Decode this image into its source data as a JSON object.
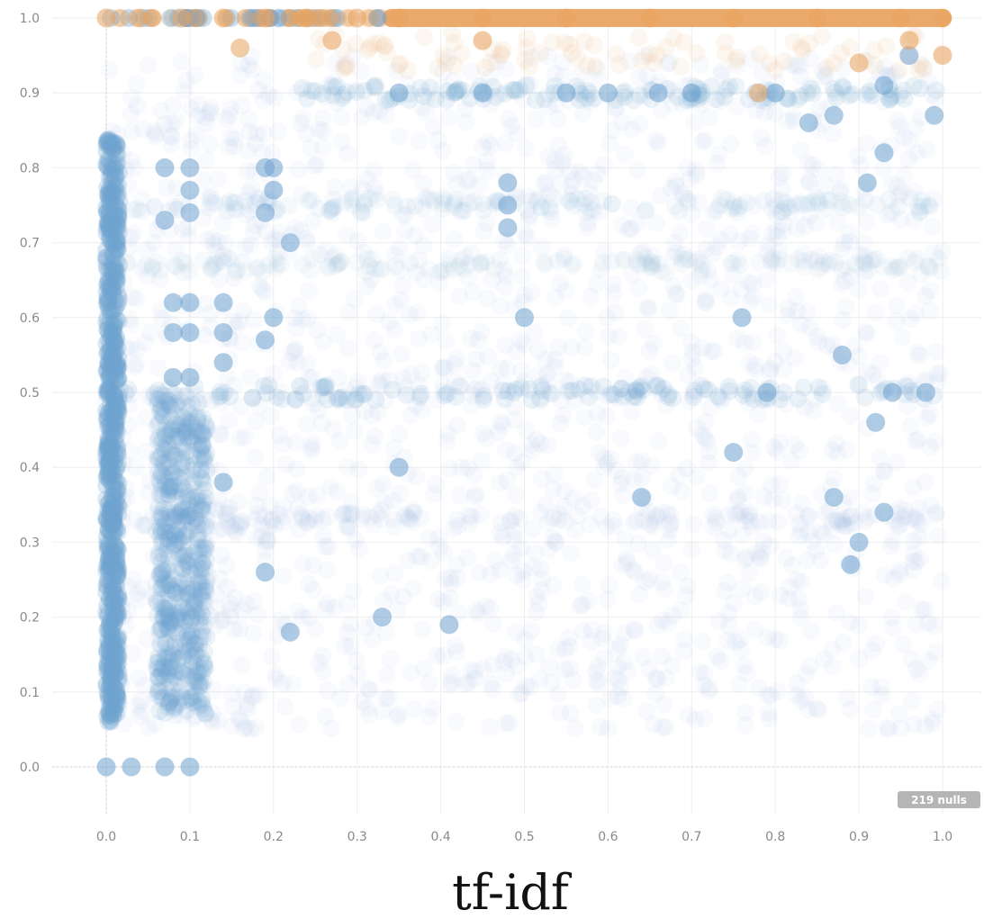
{
  "chart_data": {
    "type": "scatter",
    "title": "",
    "xlabel": "tf-idf",
    "ylabel": "",
    "xlim": [
      0,
      1
    ],
    "ylim": [
      -0.06,
      1.02
    ],
    "x_ticks": [
      "0.0",
      "0.1",
      "0.2",
      "0.3",
      "0.4",
      "0.5",
      "0.6",
      "0.7",
      "0.8",
      "0.9",
      "1.0"
    ],
    "y_ticks": [
      "0.0",
      "0.1",
      "0.2",
      "0.3",
      "0.4",
      "0.5",
      "0.6",
      "0.7",
      "0.8",
      "0.9",
      "1.0"
    ],
    "grid": true,
    "null_badge": "219 nulls",
    "colors": {
      "primary": "#6fa3d0",
      "highlight": "#e8a35f",
      "grid": "#eeeeee",
      "tick": "#8a8a8a"
    },
    "series": [
      {
        "color": "#6fa3d0",
        "note_points": "representative visible points",
        "points": [
          [
            0.0,
            0.0
          ],
          [
            0.07,
            0.0
          ],
          [
            0.1,
            0.0
          ],
          [
            0.03,
            0.0
          ],
          [
            0.07,
            0.8
          ],
          [
            0.1,
            0.8
          ],
          [
            0.07,
            0.73
          ],
          [
            0.1,
            0.74
          ],
          [
            0.1,
            0.77
          ],
          [
            0.08,
            0.62
          ],
          [
            0.1,
            0.62
          ],
          [
            0.08,
            0.58
          ],
          [
            0.1,
            0.58
          ],
          [
            0.08,
            0.52
          ],
          [
            0.1,
            0.52
          ],
          [
            0.14,
            0.62
          ],
          [
            0.14,
            0.58
          ],
          [
            0.14,
            0.54
          ],
          [
            0.14,
            0.38
          ],
          [
            0.19,
            0.8
          ],
          [
            0.2,
            0.8
          ],
          [
            0.19,
            0.74
          ],
          [
            0.2,
            0.77
          ],
          [
            0.19,
            0.57
          ],
          [
            0.2,
            0.6
          ],
          [
            0.19,
            0.26
          ],
          [
            0.22,
            0.7
          ],
          [
            0.22,
            0.18
          ],
          [
            0.33,
            0.2
          ],
          [
            0.35,
            0.4
          ],
          [
            0.41,
            0.19
          ],
          [
            0.48,
            0.75
          ],
          [
            0.48,
            0.72
          ],
          [
            0.48,
            0.78
          ],
          [
            0.5,
            0.6
          ],
          [
            0.64,
            0.36
          ],
          [
            0.76,
            0.6
          ],
          [
            0.75,
            0.42
          ],
          [
            0.79,
            0.5
          ],
          [
            0.84,
            0.86
          ],
          [
            0.87,
            0.87
          ],
          [
            0.87,
            0.36
          ],
          [
            0.93,
            0.91
          ],
          [
            0.99,
            0.87
          ],
          [
            0.94,
            0.5
          ],
          [
            0.92,
            0.46
          ],
          [
            0.93,
            0.34
          ],
          [
            0.9,
            0.3
          ],
          [
            0.89,
            0.27
          ],
          [
            0.91,
            0.78
          ],
          [
            0.93,
            0.82
          ],
          [
            0.88,
            0.55
          ],
          [
            0.98,
            0.5
          ],
          [
            0.96,
            0.95
          ],
          [
            0.55,
            0.9
          ],
          [
            0.6,
            0.9
          ],
          [
            0.7,
            0.9
          ],
          [
            0.45,
            0.9
          ],
          [
            0.35,
            0.9
          ],
          [
            0.8,
            0.9
          ],
          [
            0.66,
            0.9
          ]
        ]
      },
      {
        "color": "#e8a35f",
        "note_points": "values at y = 1.0 form a continuous band from 0.3 to 1.0",
        "points": [
          [
            0.0,
            1.0
          ],
          [
            0.04,
            1.0
          ],
          [
            0.09,
            1.0
          ],
          [
            0.14,
            1.0
          ],
          [
            0.19,
            1.0
          ],
          [
            0.24,
            1.0
          ],
          [
            0.3,
            1.0
          ],
          [
            0.35,
            1.0
          ],
          [
            0.45,
            1.0
          ],
          [
            0.55,
            1.0
          ],
          [
            0.65,
            1.0
          ],
          [
            0.75,
            1.0
          ],
          [
            0.85,
            1.0
          ],
          [
            0.95,
            1.0
          ],
          [
            1.0,
            1.0
          ],
          [
            0.16,
            0.96
          ],
          [
            0.27,
            0.97
          ],
          [
            0.45,
            0.97
          ],
          [
            0.78,
            0.9
          ],
          [
            0.96,
            0.97
          ],
          [
            1.0,
            0.95
          ],
          [
            0.9,
            0.94
          ]
        ]
      }
    ]
  }
}
